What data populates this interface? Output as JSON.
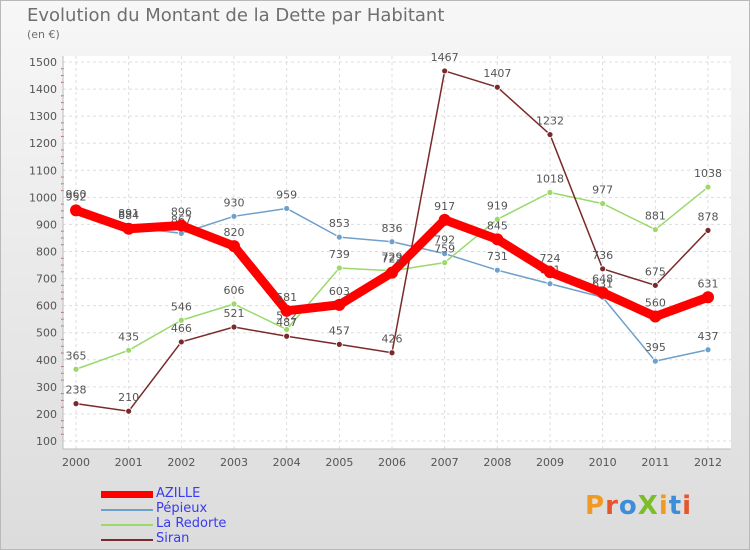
{
  "title": "Evolution du Montant de la Dette par Habitant",
  "subtitle": "(en €)",
  "logo": {
    "text": "ProXiti",
    "colors": [
      "#f19a22",
      "#e7552a",
      "#3c8ed8",
      "#7cbd2a",
      "#f19a22",
      "#3c8ed8",
      "#e7552a"
    ]
  },
  "chart_data": {
    "type": "line",
    "title": "Evolution du Montant de la Dette par Habitant",
    "subtitle": "(en €)",
    "xlabel": "",
    "ylabel": "",
    "x": [
      "2000",
      "2001",
      "2002",
      "2003",
      "2004",
      "2005",
      "2006",
      "2007",
      "2008",
      "2009",
      "2010",
      "2011",
      "2012"
    ],
    "ylim": [
      100,
      1500
    ],
    "yticks": [
      100,
      200,
      300,
      400,
      500,
      600,
      700,
      800,
      900,
      1000,
      1100,
      1200,
      1300,
      1400,
      1500
    ],
    "grid": true,
    "legend_position": "bottom-left",
    "series": [
      {
        "name": "AZILLE",
        "color": "#ff0000",
        "values": [
          952,
          884,
          896,
          820,
          581,
          603,
          722,
          917,
          845,
          724,
          648,
          560,
          631
        ]
      },
      {
        "name": "Pépieux",
        "color": "#6fa0cc",
        "values": [
          960,
          891,
          867,
          930,
          959,
          853,
          836,
          792,
          731,
          681,
          631,
          395,
          437
        ]
      },
      {
        "name": "La Redorte",
        "color": "#9ad96a",
        "values": [
          365,
          435,
          546,
          606,
          512,
          739,
          729,
          759,
          919,
          1018,
          977,
          881,
          1038
        ]
      },
      {
        "name": "Siran",
        "color": "#7a2a2a",
        "values": [
          238,
          210,
          466,
          521,
          487,
          457,
          426,
          1467,
          1407,
          1232,
          736,
          675,
          878
        ]
      }
    ]
  }
}
